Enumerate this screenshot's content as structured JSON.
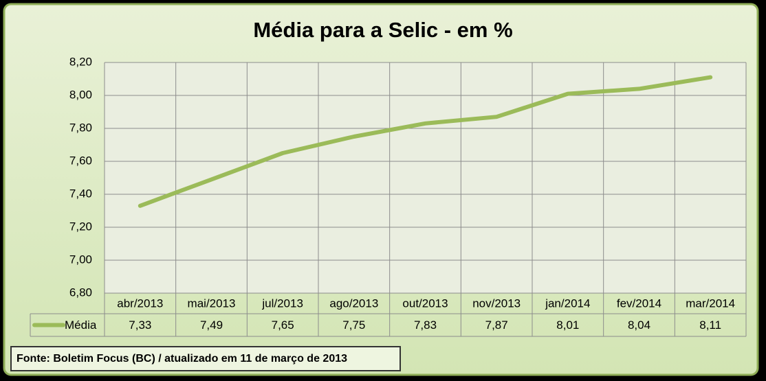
{
  "chart_data": {
    "type": "line",
    "title": "Média para a Selic - em %",
    "categories": [
      "abr/2013",
      "mai/2013",
      "jul/2013",
      "ago/2013",
      "out/2013",
      "nov/2013",
      "jan/2014",
      "fev/2014",
      "mar/2014"
    ],
    "series": [
      {
        "name": "Média",
        "color": "#9bbb59",
        "values": [
          7.33,
          7.49,
          7.65,
          7.75,
          7.83,
          7.87,
          8.01,
          8.04,
          8.11
        ],
        "value_labels": [
          "7,33",
          "7,49",
          "7,65",
          "7,75",
          "7,83",
          "7,87",
          "8,01",
          "8,04",
          "8,11"
        ]
      }
    ],
    "ylim": [
      6.8,
      8.2
    ],
    "yticks": [
      {
        "value": 6.8,
        "label": "6,80"
      },
      {
        "value": 7.0,
        "label": "7,00"
      },
      {
        "value": 7.2,
        "label": "7,20"
      },
      {
        "value": 7.4,
        "label": "7,40"
      },
      {
        "value": 7.6,
        "label": "7,60"
      },
      {
        "value": 7.8,
        "label": "7,80"
      },
      {
        "value": 8.0,
        "label": "8,00"
      },
      {
        "value": 8.2,
        "label": "8,20"
      }
    ],
    "grid": true,
    "source": "Fonte: Boletim Focus (BC) / atualizado  em 11 de março de 2013"
  }
}
